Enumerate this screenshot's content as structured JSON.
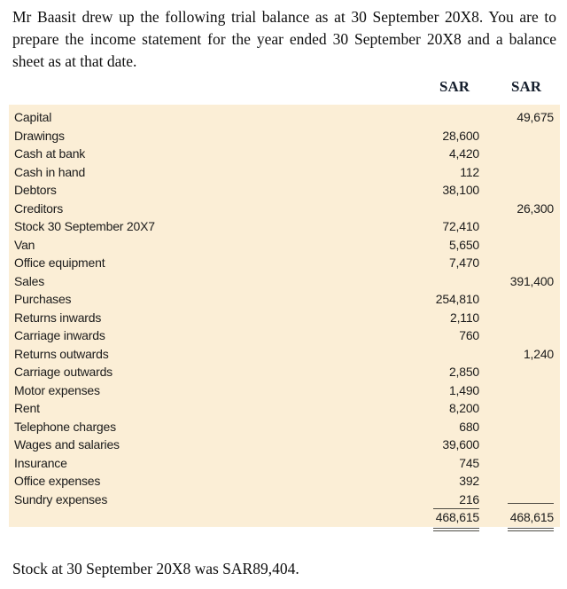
{
  "intro_text": "Mr Baasit drew up the following trial balance as at 30 September 20X8. You are to prepare the income statement for the year ended 30 September 20X8 and a balance sheet as at that date.",
  "table": {
    "col_headers": {
      "debit": "SAR",
      "credit": "SAR"
    },
    "rows": [
      {
        "label": "Capital",
        "debit": "",
        "credit": "49,675"
      },
      {
        "label": "Drawings",
        "debit": "28,600",
        "credit": ""
      },
      {
        "label": "Cash at bank",
        "debit": "4,420",
        "credit": ""
      },
      {
        "label": "Cash in hand",
        "debit": "112",
        "credit": ""
      },
      {
        "label": "Debtors",
        "debit": "38,100",
        "credit": ""
      },
      {
        "label": "Creditors",
        "debit": "",
        "credit": "26,300"
      },
      {
        "label": "Stock 30 September 20X7",
        "debit": "72,410",
        "credit": ""
      },
      {
        "label": "Van",
        "debit": "5,650",
        "credit": ""
      },
      {
        "label": "Office equipment",
        "debit": "7,470",
        "credit": ""
      },
      {
        "label": "Sales",
        "debit": "",
        "credit": "391,400"
      },
      {
        "label": "Purchases",
        "debit": "254,810",
        "credit": ""
      },
      {
        "label": "Returns inwards",
        "debit": "2,110",
        "credit": ""
      },
      {
        "label": "Carriage inwards",
        "debit": "760",
        "credit": ""
      },
      {
        "label": "Returns outwards",
        "debit": "",
        "credit": "1,240"
      },
      {
        "label": "Carriage outwards",
        "debit": "2,850",
        "credit": ""
      },
      {
        "label": "Motor expenses",
        "debit": "1,490",
        "credit": ""
      },
      {
        "label": "Rent",
        "debit": "8,200",
        "credit": ""
      },
      {
        "label": "Telephone charges",
        "debit": "680",
        "credit": ""
      },
      {
        "label": "Wages and salaries",
        "debit": "39,600",
        "credit": ""
      },
      {
        "label": "Insurance",
        "debit": "745",
        "credit": ""
      },
      {
        "label": "Office expenses",
        "debit": "392",
        "credit": ""
      },
      {
        "label": "Sundry expenses",
        "debit": "216",
        "credit": "",
        "underline_after": true
      }
    ],
    "totals": {
      "debit": "468,615",
      "credit": "468,615"
    }
  },
  "footnote_text": "Stock at 30 September 20X8 was SAR89,404.",
  "colors": {
    "table_background": "#fbeed6",
    "text": "#111111",
    "rule": "#4d4b43"
  }
}
